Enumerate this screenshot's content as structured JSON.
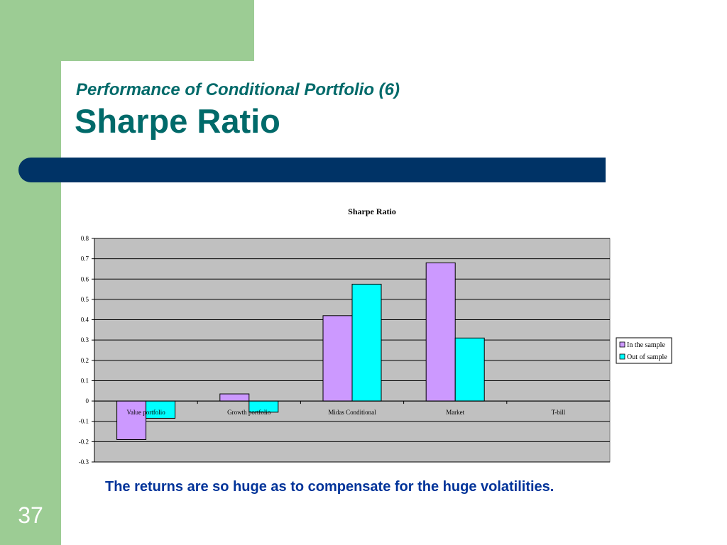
{
  "slide": {
    "subtitle": "Performance of Conditional Portfolio (6)",
    "title": "Sharpe Ratio",
    "footnote": "The returns are so huge as to compensate for the huge volatilities.",
    "slide_number": "37"
  },
  "colors": {
    "background_green": "#9ccc94",
    "title_teal": "#006a6a",
    "band_navy": "#003366",
    "footnote_blue": "#003399",
    "plot_area": "#c0c0c0",
    "series_in_sample": "#cc99ff",
    "series_out_of_sample": "#00ffff"
  },
  "chart_data": {
    "type": "bar",
    "title": "Sharpe Ratio",
    "categories": [
      "Value portfolio",
      "Growth portfolio",
      "Midas Conditional",
      "Market",
      "T-bill"
    ],
    "series": [
      {
        "name": "In the sample",
        "values": [
          -0.19,
          0.035,
          0.42,
          0.68,
          0
        ]
      },
      {
        "name": "Out of sample",
        "values": [
          -0.085,
          -0.055,
          0.575,
          0.31,
          0
        ]
      }
    ],
    "ylim": [
      -0.3,
      0.8
    ],
    "yticks": [
      "-0.3",
      "-0.2",
      "-0.1",
      "0",
      "0.1",
      "0.2",
      "0.3",
      "0.4",
      "0.5",
      "0.6",
      "0.7",
      "0.8"
    ],
    "ytick_values": [
      -0.3,
      -0.2,
      -0.1,
      0,
      0.1,
      0.2,
      0.3,
      0.4,
      0.5,
      0.6,
      0.7,
      0.8
    ],
    "grid": true,
    "legend_position": "right"
  }
}
